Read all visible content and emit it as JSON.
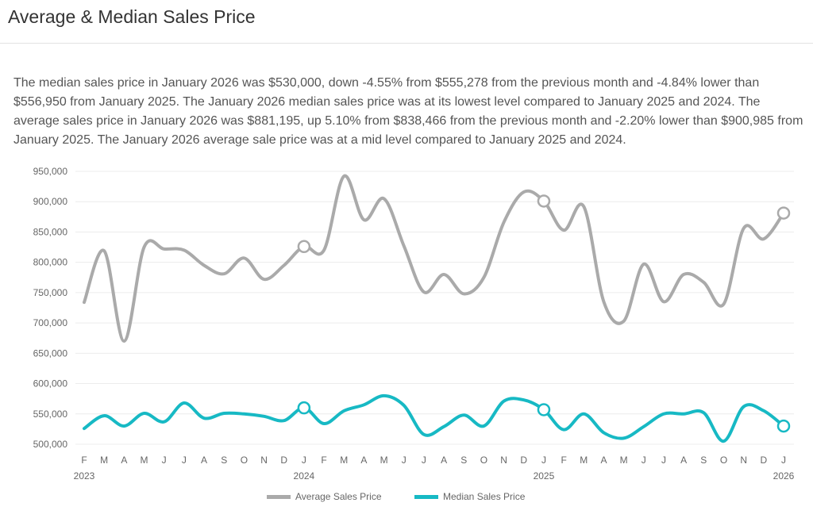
{
  "header": {
    "title": "Average & Median Sales Price"
  },
  "summary": "The median sales price in January 2026 was $530,000, down -4.55% from $555,278 from the previous month and -4.84% lower than $556,950 from January 2025. The January 2026 median sales price was at its lowest level compared to January 2025 and 2024. The average sales price in January 2026 was $881,195, up 5.10% from $838,466 from the previous month and -2.20% lower than $900,985 from January 2025. The January 2026 average sale price was at a mid level compared to January 2025 and 2024.",
  "chart_data": {
    "type": "line",
    "title": "",
    "xlabel": "",
    "ylabel": "",
    "ylim": [
      500000,
      950000
    ],
    "yticks": [
      "500,000",
      "550,000",
      "600,000",
      "650,000",
      "700,000",
      "750,000",
      "800,000",
      "850,000",
      "900,000",
      "950,000"
    ],
    "categories": [
      "F",
      "M",
      "A",
      "M",
      "J",
      "J",
      "A",
      "S",
      "O",
      "N",
      "D",
      "J",
      "F",
      "M",
      "A",
      "M",
      "J",
      "J",
      "A",
      "S",
      "O",
      "N",
      "D",
      "J",
      "F",
      "M",
      "A",
      "M",
      "J",
      "J",
      "A",
      "S",
      "O",
      "N",
      "D",
      "J"
    ],
    "year_labels": [
      {
        "index": 0,
        "label": "2023"
      },
      {
        "index": 11,
        "label": "2024"
      },
      {
        "index": 23,
        "label": "2025"
      },
      {
        "index": 35,
        "label": "2026"
      }
    ],
    "highlight_indices": [
      11,
      23,
      35
    ],
    "legend_position": "bottom",
    "grid": true,
    "series": [
      {
        "name": "Average Sales Price",
        "color": "#aaaaaa",
        "values": [
          734000,
          819000,
          670000,
          825000,
          822000,
          820000,
          795000,
          781000,
          807000,
          772000,
          795000,
          826000,
          820000,
          942000,
          870000,
          905000,
          827000,
          751000,
          780000,
          748000,
          775000,
          866000,
          916000,
          900985,
          853000,
          892000,
          735000,
          703000,
          797000,
          735000,
          780000,
          767000,
          731000,
          856000,
          838466,
          881195
        ]
      },
      {
        "name": "Median Sales Price",
        "color": "#17b9c4",
        "values": [
          526000,
          547000,
          530000,
          551000,
          537000,
          568000,
          543000,
          551000,
          550000,
          546000,
          539000,
          560000,
          534000,
          555000,
          565000,
          580000,
          564000,
          516000,
          529000,
          548000,
          530000,
          571000,
          573000,
          556950,
          524000,
          550000,
          519000,
          510000,
          529000,
          550000,
          550000,
          552000,
          505000,
          562000,
          555278,
          530000
        ]
      }
    ]
  }
}
